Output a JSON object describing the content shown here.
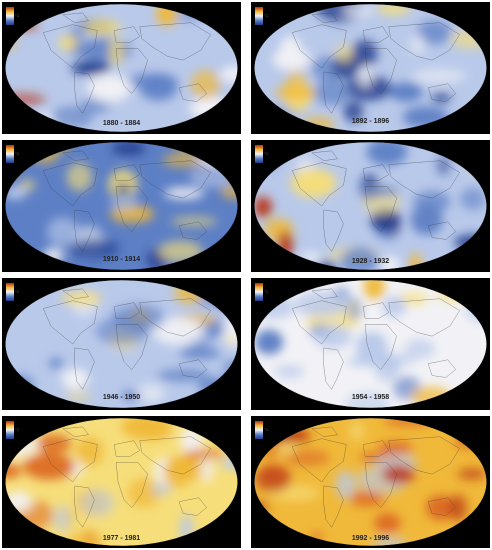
{
  "colors": {
    "background": "#000000",
    "cold_strong": "#1f3c8c",
    "cold": "#5d7fc5",
    "cold_light": "#b9c9ea",
    "neutral": "#f2f2f6",
    "warm_light": "#f6de7a",
    "warm": "#f0b93a",
    "warm_strong": "#dc6a22",
    "hot": "#b8300f"
  },
  "panels": [
    {
      "period": "1880 - 1884",
      "tone": "cold"
    },
    {
      "period": "1892 - 1896",
      "tone": "cold"
    },
    {
      "period": "1910 - 1914",
      "tone": "very-cold"
    },
    {
      "period": "1928 - 1932",
      "tone": "cold"
    },
    {
      "period": "1946 - 1950",
      "tone": "cool"
    },
    {
      "period": "1954 - 1958",
      "tone": "neutral"
    },
    {
      "period": "1977 - 1981",
      "tone": "warm"
    },
    {
      "period": "1992 - 1996",
      "tone": "hot"
    }
  ],
  "scale_unit": "°C"
}
